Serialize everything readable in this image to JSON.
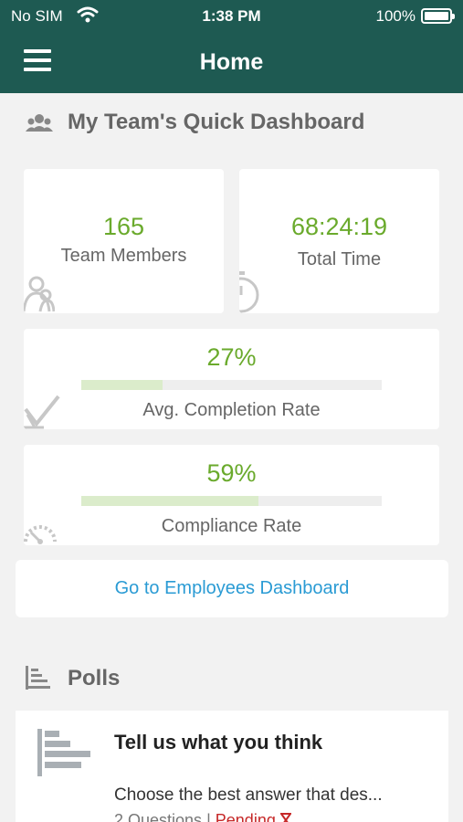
{
  "status_bar": {
    "carrier": "No SIM",
    "time": "1:38 PM",
    "battery": "100%"
  },
  "nav": {
    "title": "Home"
  },
  "dashboard": {
    "title": "My Team's Quick Dashboard",
    "team_members": {
      "value": "165",
      "label": "Team Members"
    },
    "total_time": {
      "value": "68:24:19",
      "label": "Total Time"
    },
    "completion": {
      "value": "27%",
      "label": "Avg. Completion Rate",
      "fraction": 0.27
    },
    "compliance": {
      "value": "59%",
      "label": "Compliance Rate",
      "fraction": 0.59
    },
    "link_label": "Go to Employees Dashboard"
  },
  "polls": {
    "title": "Polls",
    "items": [
      {
        "title": "Tell us what you think",
        "description": "Choose the best answer that des...",
        "questions": "2 Questions",
        "separator": "|",
        "status": "Pending"
      }
    ]
  },
  "colors": {
    "header": "#1e5a52",
    "accent_green": "#6aaa2c",
    "link_blue": "#2a9bd4",
    "pending_red": "#c62828"
  },
  "icons": [
    "wifi-icon",
    "battery-icon",
    "menu-icon",
    "team-icon",
    "stopwatch-icon",
    "checkmark-icon",
    "gauge-icon",
    "bar-chart-icon",
    "hourglass-icon"
  ]
}
